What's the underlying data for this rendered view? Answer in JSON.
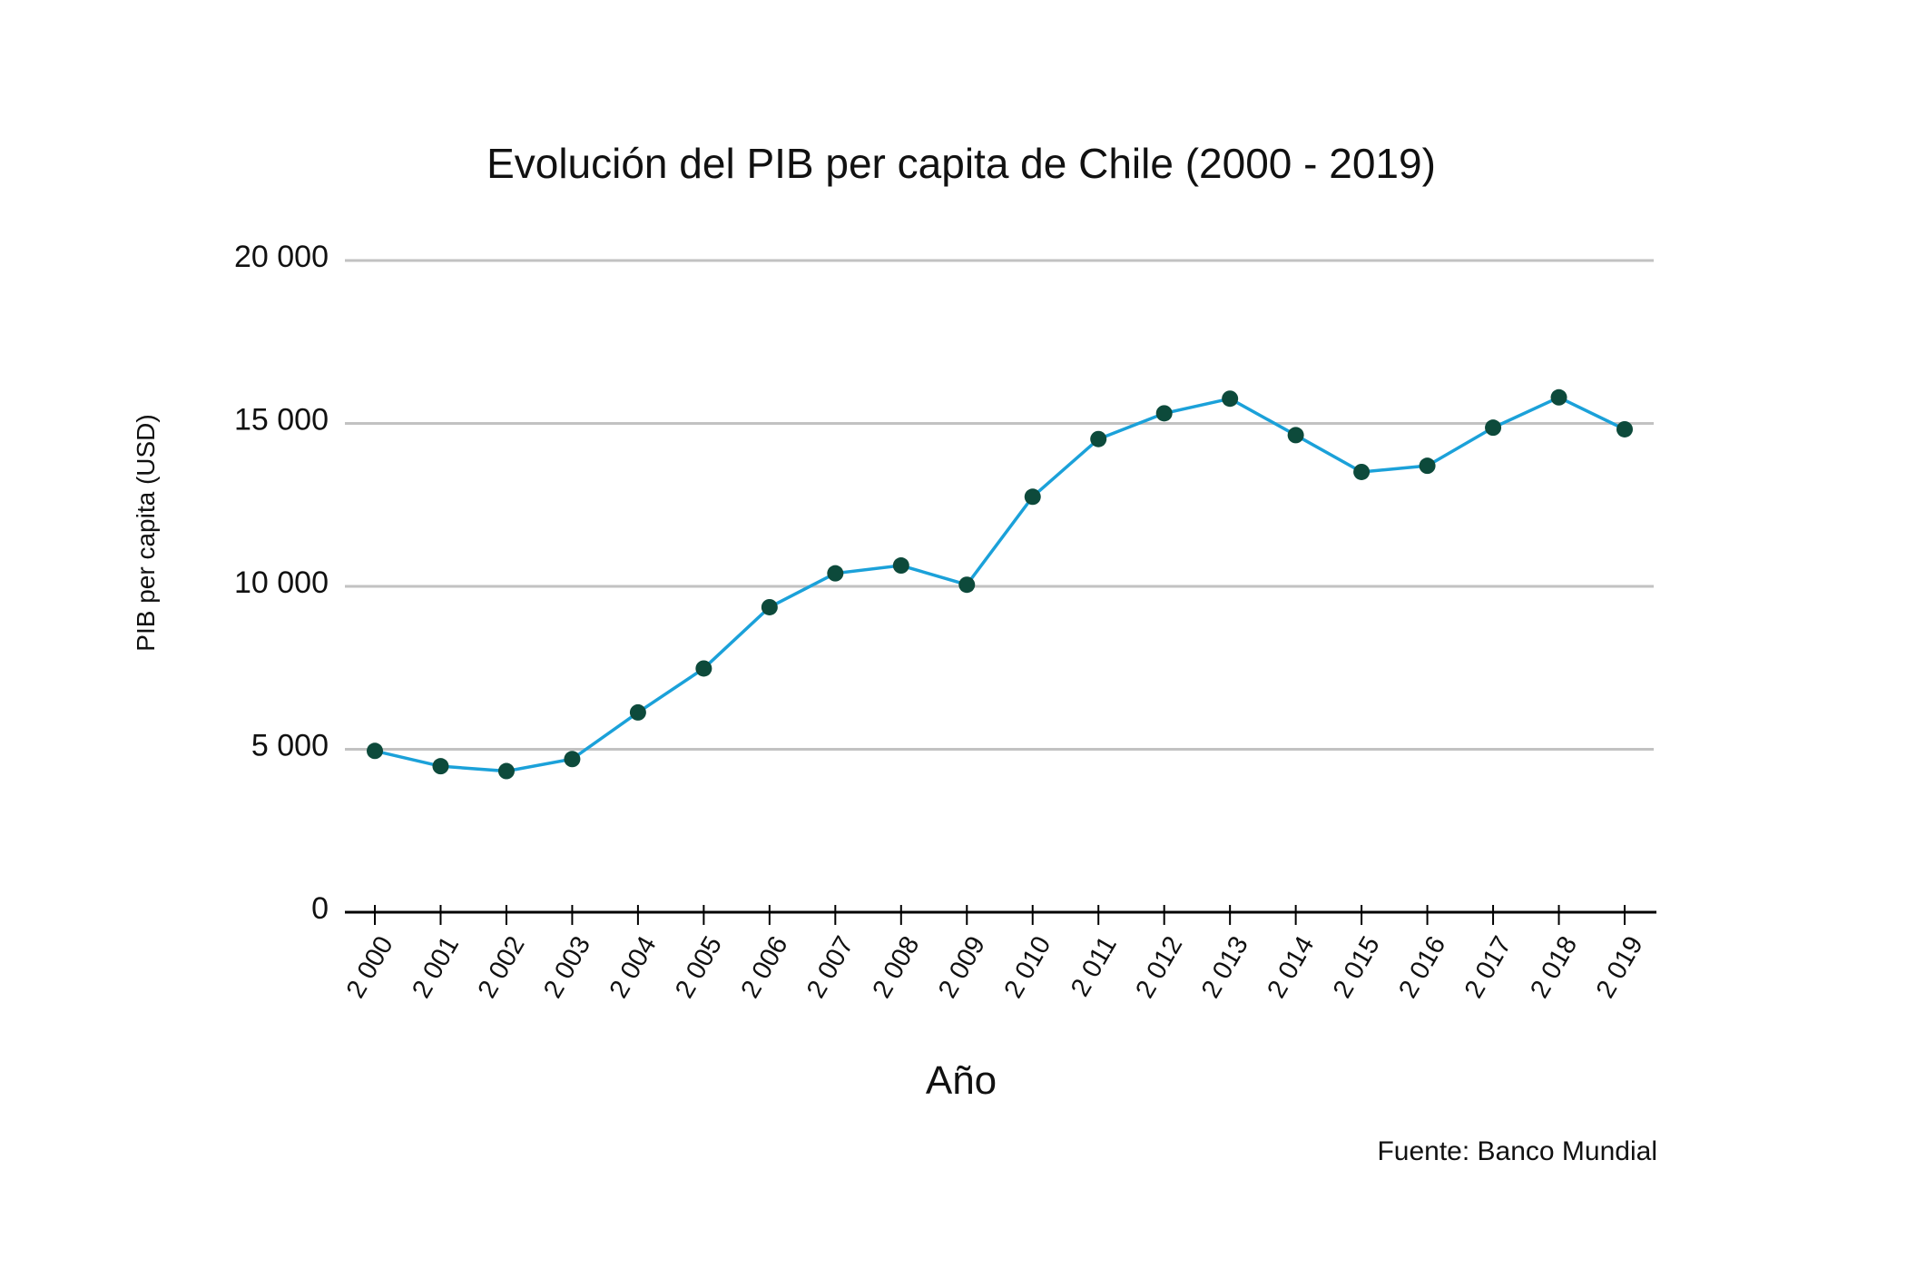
{
  "chart_data": {
    "type": "line",
    "title": "Evolución del PIB per capita de Chile (2000 - 2019)",
    "x_label": "Año",
    "y_label": "PIB per capita (USD)",
    "source": "Fuente: Banco Mundial",
    "categories": [
      "2 000",
      "2 001",
      "2 002",
      "2 003",
      "2 004",
      "2 005",
      "2 006",
      "2 007",
      "2 008",
      "2 009",
      "2 010",
      "2 011",
      "2 012",
      "2 013",
      "2 014",
      "2 015",
      "2 016",
      "2 017",
      "2 018",
      "2 019"
    ],
    "values": [
      4950,
      4480,
      4330,
      4700,
      6130,
      7480,
      9360,
      10400,
      10640,
      10050,
      12750,
      14520,
      15310,
      15760,
      14640,
      13510,
      13700,
      14870,
      15800,
      14820
    ],
    "color": "#1ba1d9",
    "marker_color": "#0d4a3b",
    "ylim": [
      0,
      20000
    ],
    "yticks": [
      0,
      {
        "value": 5000,
        "label": "5 000"
      },
      {
        "value": 10000,
        "label": "10 000"
      },
      {
        "value": 15000,
        "label": "15 000"
      },
      {
        "value": 20000,
        "label": "20 000"
      }
    ],
    "grid": true
  }
}
